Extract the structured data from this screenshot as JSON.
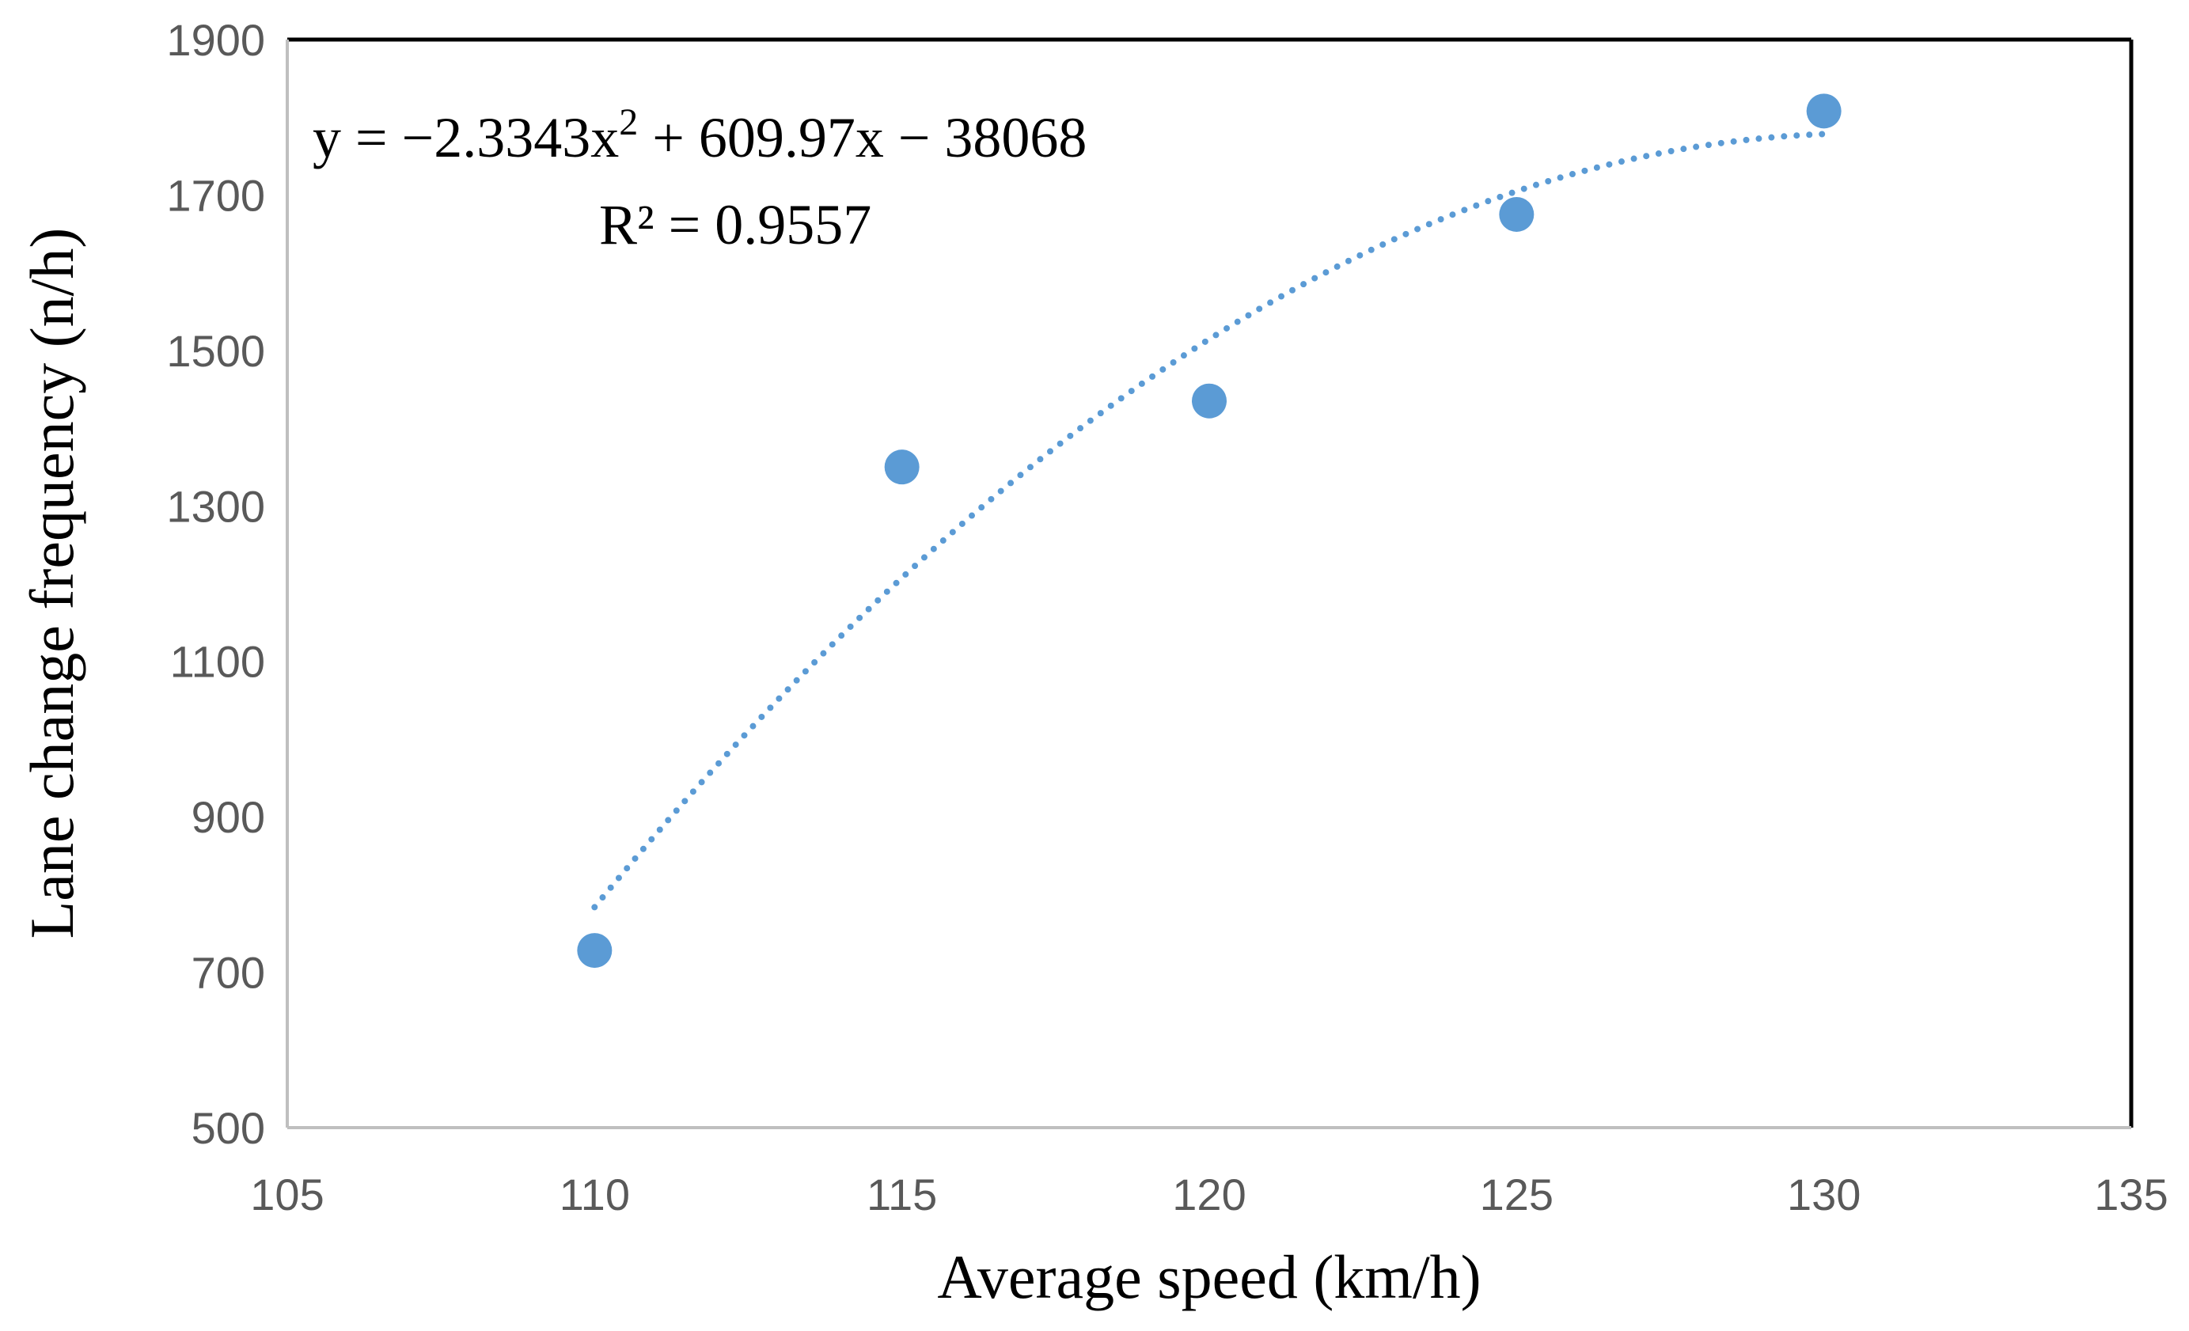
{
  "chart_data": {
    "type": "scatter",
    "title": "",
    "xlabel": "Average speed (km/h)",
    "ylabel": "Lane change frequency (n/h)",
    "xlim": [
      105,
      135
    ],
    "ylim": [
      500,
      1900
    ],
    "xticks": [
      105,
      110,
      115,
      120,
      125,
      130,
      135
    ],
    "yticks": [
      500,
      700,
      900,
      1100,
      1300,
      1500,
      1700,
      1900
    ],
    "grid": false,
    "series": [
      {
        "name": "Lane change frequency",
        "x": [
          110,
          115,
          120,
          125,
          130
        ],
        "y": [
          728,
          1350,
          1435,
          1675,
          1808
        ]
      }
    ],
    "trendline": {
      "type": "polynomial",
      "order": 2,
      "coefficients": [
        -2.3343,
        609.97,
        -38068
      ],
      "x_range": [
        110,
        130
      ],
      "equation_label": "y = −2.3343x",
      "equation_exponent": "2",
      "equation_rest": " + 609.97x − 38068",
      "r2_label": "R² = 0.9557"
    },
    "colors": {
      "marker": "#5B9BD5",
      "trendline": "#5B9BD5",
      "axis": "#BFBFBF",
      "frame": "#000000",
      "tick_text": "#595959"
    }
  }
}
